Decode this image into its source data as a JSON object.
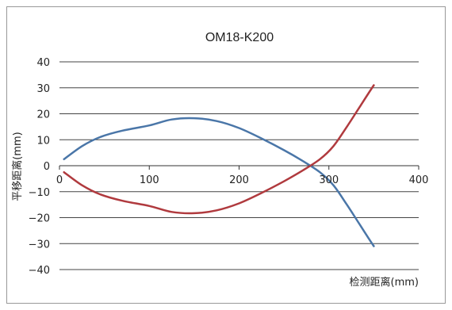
{
  "chart_data": {
    "type": "line",
    "title": "OM18-K200",
    "xlabel": "检测距离(mm)",
    "ylabel": "平移距离(mm)",
    "xlim": [
      0,
      400
    ],
    "ylim": [
      -40,
      40
    ],
    "xticks": [
      0,
      100,
      200,
      300,
      400
    ],
    "yticks": [
      40,
      30,
      20,
      10,
      0,
      -10,
      -20,
      -30,
      -40
    ],
    "ytick_labels": [
      "40",
      "30",
      "20",
      "10",
      "0",
      "−10",
      "−20",
      "−30",
      "−40"
    ],
    "grid": "horizontal",
    "legend": "none",
    "series": [
      {
        "color": "#4a76a8",
        "x": [
          5,
          25,
          45,
          70,
          100,
          125,
          150,
          175,
          200,
          225,
          250,
          270,
          290,
          305,
          320,
          335,
          350
        ],
        "y": [
          2.5,
          7.5,
          11,
          13.5,
          15.5,
          17.8,
          18.3,
          17.2,
          14.5,
          10.5,
          6,
          2,
          -2.5,
          -7.5,
          -15,
          -23,
          -31
        ]
      },
      {
        "color": "#b03a3e",
        "x": [
          5,
          25,
          45,
          70,
          100,
          125,
          150,
          175,
          200,
          225,
          250,
          270,
          290,
          305,
          320,
          335,
          350
        ],
        "y": [
          -2.5,
          -7.5,
          -11,
          -13.5,
          -15.5,
          -17.8,
          -18.3,
          -17.2,
          -14.5,
          -10.5,
          -6,
          -2,
          2.5,
          7.5,
          15,
          23,
          31
        ]
      }
    ]
  }
}
